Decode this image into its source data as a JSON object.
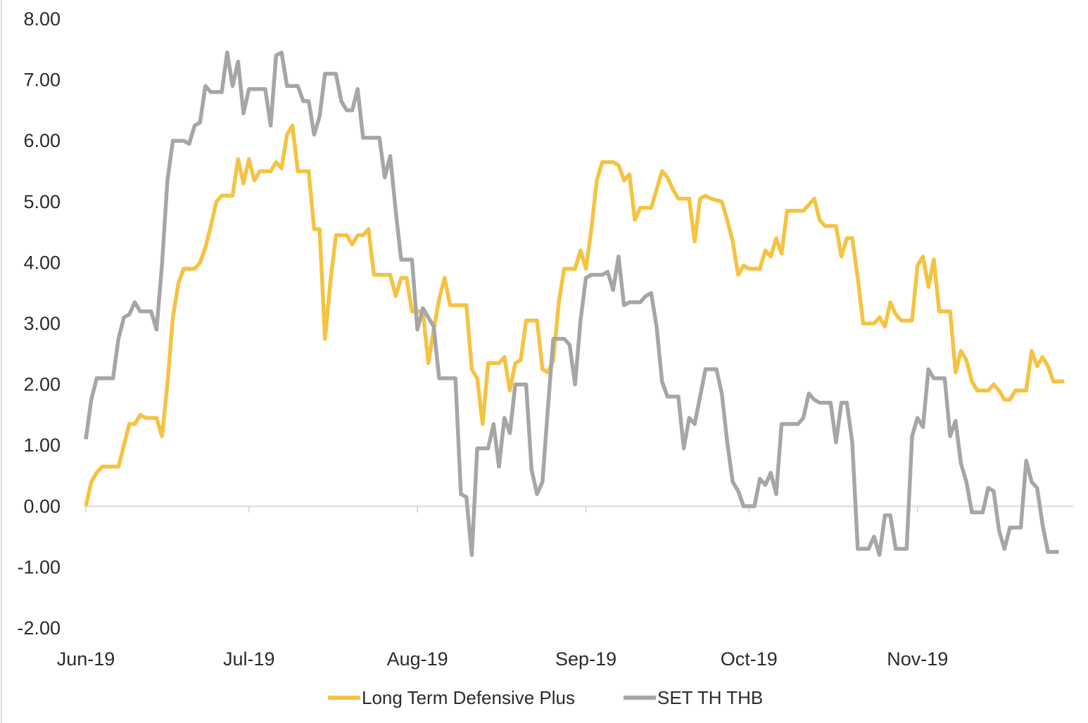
{
  "chart_data": {
    "type": "line",
    "title": "",
    "xlabel": "",
    "ylabel": "",
    "ylim": [
      -2,
      8
    ],
    "y_ticks": [
      "8.00",
      "7.00",
      "6.00",
      "5.00",
      "4.00",
      "3.00",
      "2.00",
      "1.00",
      "0.00",
      "-1.00",
      "-2.00"
    ],
    "x_ticks": [
      "Jun-19",
      "Jul-19",
      "Aug-19",
      "Sep-19",
      "Oct-19",
      "Nov-19"
    ],
    "x_tick_index": [
      0,
      30,
      61,
      92,
      122,
      153
    ],
    "x_range": [
      0,
      181
    ],
    "grid": false,
    "legend": "bottom",
    "series": [
      {
        "name": "Long Term Defensive Plus",
        "color": "#F5C342",
        "points": [
          [
            0,
            0.0
          ],
          [
            1,
            0.4
          ],
          [
            2,
            0.55
          ],
          [
            3,
            0.65
          ],
          [
            5,
            0.65
          ],
          [
            6,
            0.65
          ],
          [
            7,
            1.0
          ],
          [
            8,
            1.35
          ],
          [
            9,
            1.35
          ],
          [
            10,
            1.5
          ],
          [
            11,
            1.45
          ],
          [
            13,
            1.45
          ],
          [
            14,
            1.15
          ],
          [
            15,
            2.0
          ],
          [
            16,
            3.1
          ],
          [
            17,
            3.65
          ],
          [
            18,
            3.9
          ],
          [
            20,
            3.9
          ],
          [
            21,
            4.0
          ],
          [
            22,
            4.25
          ],
          [
            23,
            4.6
          ],
          [
            24,
            5.0
          ],
          [
            25,
            5.1
          ],
          [
            27,
            5.1
          ],
          [
            28,
            5.7
          ],
          [
            29,
            5.3
          ],
          [
            30,
            5.7
          ],
          [
            31,
            5.35
          ],
          [
            32,
            5.5
          ],
          [
            34,
            5.5
          ],
          [
            35,
            5.65
          ],
          [
            36,
            5.55
          ],
          [
            37,
            6.1
          ],
          [
            38,
            6.25
          ],
          [
            39,
            5.5
          ],
          [
            41,
            5.5
          ],
          [
            42,
            4.55
          ],
          [
            43,
            4.55
          ],
          [
            44,
            2.75
          ],
          [
            45,
            3.7
          ],
          [
            46,
            4.45
          ],
          [
            48,
            4.45
          ],
          [
            49,
            4.3
          ],
          [
            50,
            4.45
          ],
          [
            51,
            4.45
          ],
          [
            52,
            4.55
          ],
          [
            53,
            3.8
          ],
          [
            56,
            3.8
          ],
          [
            57,
            3.45
          ],
          [
            58,
            3.75
          ],
          [
            59,
            3.75
          ],
          [
            60,
            3.2
          ],
          [
            62,
            3.2
          ],
          [
            63,
            2.35
          ],
          [
            64,
            2.9
          ],
          [
            65,
            3.4
          ],
          [
            66,
            3.75
          ],
          [
            67,
            3.3
          ],
          [
            70,
            3.3
          ],
          [
            71,
            2.25
          ],
          [
            72,
            2.1
          ],
          [
            73,
            1.35
          ],
          [
            74,
            2.35
          ],
          [
            76,
            2.35
          ],
          [
            77,
            2.45
          ],
          [
            78,
            1.9
          ],
          [
            79,
            2.35
          ],
          [
            80,
            2.4
          ],
          [
            81,
            3.05
          ],
          [
            83,
            3.05
          ],
          [
            84,
            2.25
          ],
          [
            85,
            2.2
          ],
          [
            86,
            2.4
          ],
          [
            87,
            3.35
          ],
          [
            88,
            3.9
          ],
          [
            90,
            3.9
          ],
          [
            91,
            4.2
          ],
          [
            92,
            3.9
          ],
          [
            93,
            4.55
          ],
          [
            94,
            5.35
          ],
          [
            95,
            5.65
          ],
          [
            97,
            5.65
          ],
          [
            98,
            5.6
          ],
          [
            99,
            5.35
          ],
          [
            100,
            5.45
          ],
          [
            101,
            4.7
          ],
          [
            102,
            4.9
          ],
          [
            104,
            4.9
          ],
          [
            105,
            5.2
          ],
          [
            106,
            5.5
          ],
          [
            107,
            5.4
          ],
          [
            108,
            5.2
          ],
          [
            109,
            5.05
          ],
          [
            111,
            5.05
          ],
          [
            112,
            4.35
          ],
          [
            113,
            5.05
          ],
          [
            114,
            5.1
          ],
          [
            115,
            5.05
          ],
          [
            117,
            5.0
          ],
          [
            118,
            4.7
          ],
          [
            119,
            4.35
          ],
          [
            120,
            3.8
          ],
          [
            121,
            3.95
          ],
          [
            122,
            3.9
          ],
          [
            124,
            3.9
          ],
          [
            125,
            4.2
          ],
          [
            126,
            4.1
          ],
          [
            127,
            4.4
          ],
          [
            128,
            4.15
          ],
          [
            129,
            4.85
          ],
          [
            132,
            4.85
          ],
          [
            133,
            4.95
          ],
          [
            134,
            5.05
          ],
          [
            135,
            4.7
          ],
          [
            136,
            4.6
          ],
          [
            138,
            4.6
          ],
          [
            139,
            4.1
          ],
          [
            140,
            4.4
          ],
          [
            141,
            4.4
          ],
          [
            142,
            3.75
          ],
          [
            143,
            3.0
          ],
          [
            145,
            3.0
          ],
          [
            146,
            3.1
          ],
          [
            147,
            2.95
          ],
          [
            148,
            3.35
          ],
          [
            149,
            3.15
          ],
          [
            150,
            3.05
          ],
          [
            152,
            3.05
          ],
          [
            153,
            3.95
          ],
          [
            154,
            4.1
          ],
          [
            155,
            3.6
          ],
          [
            156,
            4.05
          ],
          [
            157,
            3.2
          ],
          [
            159,
            3.2
          ],
          [
            160,
            2.2
          ],
          [
            161,
            2.55
          ],
          [
            162,
            2.4
          ],
          [
            163,
            2.05
          ],
          [
            164,
            1.9
          ],
          [
            166,
            1.9
          ],
          [
            167,
            2.0
          ],
          [
            168,
            1.9
          ],
          [
            169,
            1.75
          ],
          [
            170,
            1.75
          ],
          [
            171,
            1.9
          ],
          [
            173,
            1.9
          ],
          [
            174,
            2.55
          ],
          [
            175,
            2.3
          ],
          [
            176,
            2.45
          ],
          [
            177,
            2.3
          ],
          [
            178,
            2.05
          ],
          [
            180,
            2.05
          ]
        ]
      },
      {
        "name": "SET TH THB",
        "color": "#A6A6A6",
        "points": [
          [
            0,
            1.1
          ],
          [
            1,
            1.75
          ],
          [
            2,
            2.1
          ],
          [
            4,
            2.1
          ],
          [
            5,
            2.1
          ],
          [
            6,
            2.75
          ],
          [
            7,
            3.1
          ],
          [
            8,
            3.15
          ],
          [
            9,
            3.35
          ],
          [
            10,
            3.2
          ],
          [
            12,
            3.2
          ],
          [
            13,
            2.9
          ],
          [
            14,
            3.95
          ],
          [
            15,
            5.35
          ],
          [
            16,
            6.0
          ],
          [
            18,
            6.0
          ],
          [
            19,
            5.95
          ],
          [
            20,
            6.25
          ],
          [
            21,
            6.3
          ],
          [
            22,
            6.9
          ],
          [
            23,
            6.8
          ],
          [
            25,
            6.8
          ],
          [
            26,
            7.45
          ],
          [
            27,
            6.9
          ],
          [
            28,
            7.3
          ],
          [
            29,
            6.45
          ],
          [
            30,
            6.85
          ],
          [
            33,
            6.85
          ],
          [
            34,
            6.25
          ],
          [
            35,
            7.4
          ],
          [
            36,
            7.45
          ],
          [
            37,
            6.9
          ],
          [
            39,
            6.9
          ],
          [
            40,
            6.65
          ],
          [
            41,
            6.65
          ],
          [
            42,
            6.1
          ],
          [
            43,
            6.4
          ],
          [
            44,
            7.1
          ],
          [
            46,
            7.1
          ],
          [
            47,
            6.65
          ],
          [
            48,
            6.5
          ],
          [
            49,
            6.5
          ],
          [
            50,
            6.85
          ],
          [
            51,
            6.05
          ],
          [
            54,
            6.05
          ],
          [
            55,
            5.4
          ],
          [
            56,
            5.75
          ],
          [
            57,
            4.85
          ],
          [
            58,
            4.05
          ],
          [
            60,
            4.05
          ],
          [
            61,
            2.9
          ],
          [
            62,
            3.25
          ],
          [
            63,
            3.1
          ],
          [
            64,
            2.95
          ],
          [
            65,
            2.1
          ],
          [
            68,
            2.1
          ],
          [
            69,
            0.2
          ],
          [
            70,
            0.15
          ],
          [
            71,
            -0.8
          ],
          [
            72,
            0.95
          ],
          [
            74,
            0.95
          ],
          [
            75,
            1.35
          ],
          [
            76,
            0.65
          ],
          [
            77,
            1.45
          ],
          [
            78,
            1.2
          ],
          [
            79,
            2.0
          ],
          [
            81,
            2.0
          ],
          [
            82,
            0.6
          ],
          [
            83,
            0.2
          ],
          [
            84,
            0.4
          ],
          [
            85,
            1.6
          ],
          [
            86,
            2.75
          ],
          [
            88,
            2.75
          ],
          [
            89,
            2.65
          ],
          [
            90,
            2.0
          ],
          [
            91,
            3.05
          ],
          [
            92,
            3.75
          ],
          [
            93,
            3.8
          ],
          [
            95,
            3.8
          ],
          [
            96,
            3.85
          ],
          [
            97,
            3.55
          ],
          [
            98,
            4.1
          ],
          [
            99,
            3.3
          ],
          [
            100,
            3.35
          ],
          [
            102,
            3.35
          ],
          [
            103,
            3.45
          ],
          [
            104,
            3.5
          ],
          [
            105,
            2.95
          ],
          [
            106,
            2.05
          ],
          [
            107,
            1.8
          ],
          [
            109,
            1.8
          ],
          [
            110,
            0.95
          ],
          [
            111,
            1.45
          ],
          [
            112,
            1.35
          ],
          [
            113,
            1.8
          ],
          [
            114,
            2.25
          ],
          [
            116,
            2.25
          ],
          [
            117,
            1.85
          ],
          [
            118,
            1.05
          ],
          [
            119,
            0.4
          ],
          [
            120,
            0.25
          ],
          [
            121,
            0.0
          ],
          [
            123,
            0.0
          ],
          [
            124,
            0.45
          ],
          [
            125,
            0.35
          ],
          [
            126,
            0.55
          ],
          [
            127,
            0.2
          ],
          [
            128,
            1.35
          ],
          [
            131,
            1.35
          ],
          [
            132,
            1.45
          ],
          [
            133,
            1.85
          ],
          [
            134,
            1.75
          ],
          [
            135,
            1.7
          ],
          [
            137,
            1.7
          ],
          [
            138,
            1.05
          ],
          [
            139,
            1.7
          ],
          [
            140,
            1.7
          ],
          [
            141,
            1.05
          ],
          [
            142,
            -0.7
          ],
          [
            144,
            -0.7
          ],
          [
            145,
            -0.5
          ],
          [
            146,
            -0.8
          ],
          [
            147,
            -0.15
          ],
          [
            148,
            -0.15
          ],
          [
            149,
            -0.7
          ],
          [
            151,
            -0.7
          ],
          [
            152,
            1.15
          ],
          [
            153,
            1.45
          ],
          [
            154,
            1.3
          ],
          [
            155,
            2.25
          ],
          [
            156,
            2.1
          ],
          [
            158,
            2.1
          ],
          [
            159,
            1.15
          ],
          [
            160,
            1.4
          ],
          [
            161,
            0.7
          ],
          [
            162,
            0.4
          ],
          [
            163,
            -0.1
          ],
          [
            165,
            -0.1
          ],
          [
            166,
            0.3
          ],
          [
            167,
            0.25
          ],
          [
            168,
            -0.4
          ],
          [
            169,
            -0.7
          ],
          [
            170,
            -0.35
          ],
          [
            172,
            -0.35
          ],
          [
            173,
            0.75
          ],
          [
            174,
            0.4
          ],
          [
            175,
            0.3
          ],
          [
            176,
            -0.3
          ],
          [
            177,
            -0.75
          ],
          [
            179,
            -0.75
          ]
        ]
      }
    ]
  }
}
